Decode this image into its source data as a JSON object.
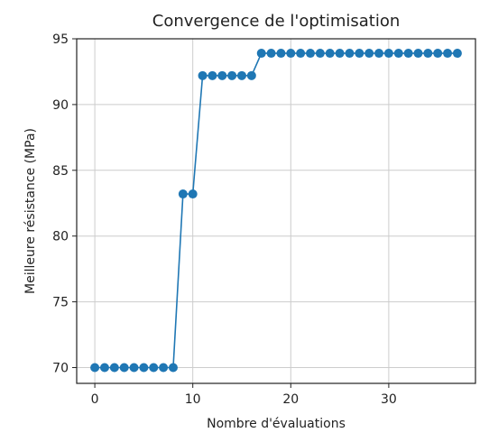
{
  "chart_data": {
    "type": "line",
    "title": "Convergence de l'optimisation",
    "xlabel": "Nombre d'évaluations",
    "ylabel": "Meilleure résistance (MPa)",
    "xlim": [
      -1.85,
      38.85
    ],
    "ylim": [
      68.8,
      95
    ],
    "xticks": [
      0,
      10,
      20,
      30
    ],
    "yticks": [
      70,
      75,
      80,
      85,
      90,
      95
    ],
    "grid": true,
    "legend": "none",
    "series": [
      {
        "color": "#1f77b4",
        "marker": "circle",
        "x": [
          0,
          1,
          2,
          3,
          4,
          5,
          6,
          7,
          8,
          9,
          10,
          11,
          12,
          13,
          14,
          15,
          16,
          17,
          18,
          19,
          20,
          21,
          22,
          23,
          24,
          25,
          26,
          27,
          28,
          29,
          30,
          31,
          32,
          33,
          34,
          35,
          36,
          37
        ],
        "y": [
          70,
          70,
          70,
          70,
          70,
          70,
          70,
          70,
          70,
          83.2,
          83.2,
          92.2,
          92.2,
          92.2,
          92.2,
          92.2,
          92.2,
          93.9,
          93.9,
          93.9,
          93.9,
          93.9,
          93.9,
          93.9,
          93.9,
          93.9,
          93.9,
          93.9,
          93.9,
          93.9,
          93.9,
          93.9,
          93.9,
          93.9,
          93.9,
          93.9,
          93.9,
          93.9
        ]
      }
    ]
  }
}
